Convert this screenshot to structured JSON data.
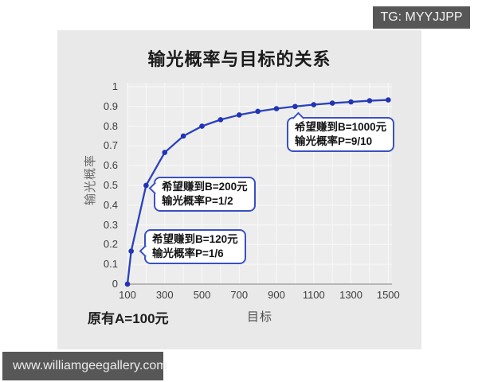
{
  "watermarks": {
    "tg_badge": "TG: MYYJJPP",
    "site_badge": "www.williamgeegallery.com"
  },
  "chart": {
    "title": "输光概率与目标的关系",
    "x_axis_label": "目标",
    "y_axis_label": "输光概率",
    "note": "原有A=100元",
    "colors": {
      "panel_bg": "#e9e9e9",
      "plot_bg": "#ededed",
      "grid": "#f7f7f7",
      "axis": "#a3a3a3",
      "line": "#2a41bd",
      "marker": "#2333b5",
      "callout_border": "#3a50c2",
      "badge_bg": "#575757"
    },
    "callouts": [
      {
        "line1": "希望赚到B=200元",
        "line2": "输光概率P=1/2"
      },
      {
        "line1": "希望赚到B=120元",
        "line2": "输光概率P=1/6"
      },
      {
        "line1": "希望赚到B=1000元",
        "line2": "输光概率P=9/10"
      }
    ]
  },
  "chart_data": {
    "type": "line",
    "title": "输光概率与目标的关系",
    "xlabel": "目标",
    "ylabel": "输光概率",
    "note": "原有A=100元",
    "x": [
      100,
      120,
      200,
      300,
      400,
      500,
      600,
      700,
      800,
      900,
      1000,
      1100,
      1200,
      1300,
      1400,
      1500
    ],
    "y": [
      0,
      0.167,
      0.5,
      0.667,
      0.75,
      0.8,
      0.833,
      0.857,
      0.875,
      0.889,
      0.9,
      0.909,
      0.917,
      0.923,
      0.929,
      0.933
    ],
    "xticks": [
      100,
      300,
      500,
      700,
      900,
      1100,
      1300,
      1500
    ],
    "xtick_labels": [
      "100",
      "300",
      "500",
      "700",
      "900",
      "1100",
      "1300",
      "1500"
    ],
    "xgridlines": [
      100,
      200,
      300,
      400,
      500,
      600,
      700,
      800,
      900,
      1000,
      1100,
      1200,
      1300,
      1400,
      1500
    ],
    "yticks": [
      0,
      0.1,
      0.2,
      0.3,
      0.4,
      0.5,
      0.6,
      0.7,
      0.8,
      0.9,
      1
    ],
    "ytick_labels": [
      "0",
      "0.1",
      "0.2",
      "0.3",
      "0.4",
      "0.5",
      "0.6",
      "0.7",
      "0.8",
      "0.9",
      "1"
    ],
    "xlim": [
      100,
      1520
    ],
    "ylim": [
      0,
      1.02
    ],
    "grid": true,
    "legend": "none",
    "annotations": [
      {
        "text": "希望赚到B=200元 输光概率P=1/2",
        "points_to": {
          "x": 200,
          "y": 0.5
        }
      },
      {
        "text": "希望赚到B=120元 输光概率P=1/6",
        "points_to": {
          "x": 120,
          "y": 0.167
        }
      },
      {
        "text": "希望赚到B=1000元 输光概率P=9/10",
        "points_to": {
          "x": 1000,
          "y": 0.9
        }
      }
    ]
  }
}
